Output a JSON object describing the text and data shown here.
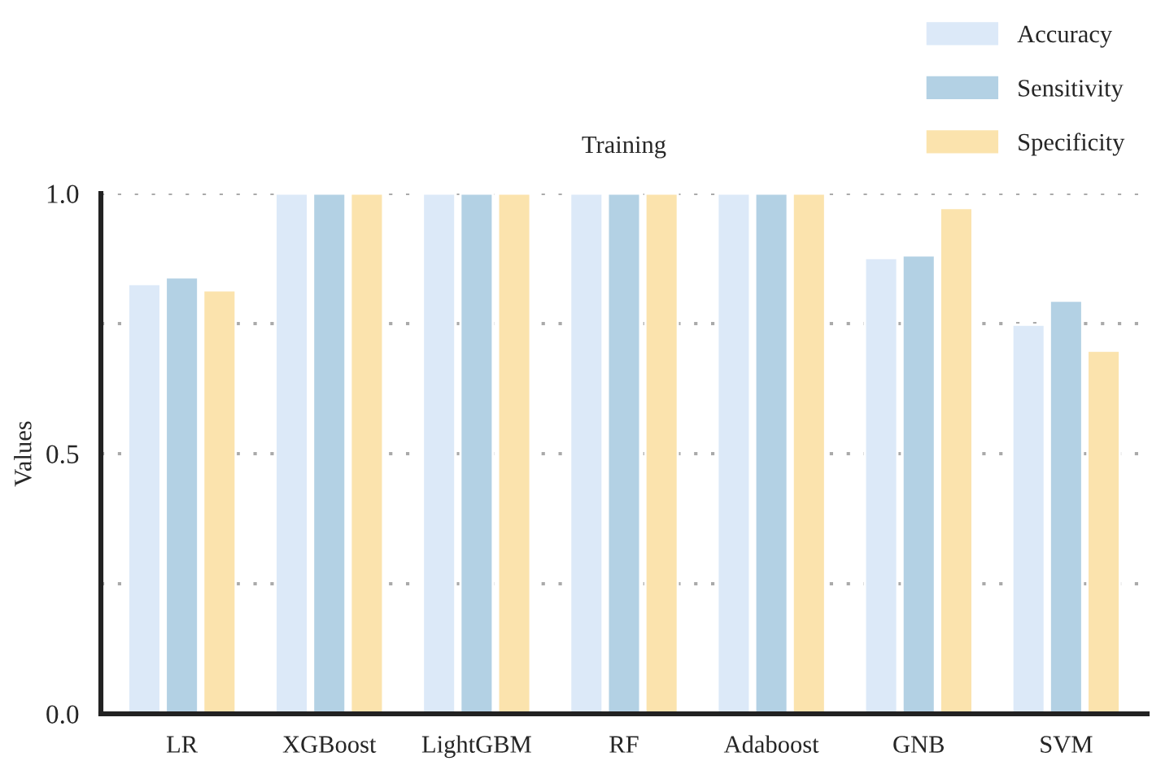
{
  "chart_data": {
    "type": "bar",
    "title": "Training",
    "ylabel": "Values",
    "categories": [
      "LR",
      "XGBoost",
      "LightGBM",
      "RF",
      "Adaboost",
      "GNB",
      "SVM"
    ],
    "series": [
      {
        "name": "Accuracy",
        "color": "#dce9f8",
        "values": [
          0.826,
          1.0,
          1.0,
          1.0,
          1.0,
          0.876,
          0.748
        ]
      },
      {
        "name": "Sensitivity",
        "color": "#b3d1e4",
        "values": [
          0.839,
          1.0,
          1.0,
          1.0,
          1.0,
          0.881,
          0.794
        ]
      },
      {
        "name": "Specificity",
        "color": "#fbe3ad",
        "values": [
          0.814,
          1.0,
          1.0,
          1.0,
          1.0,
          0.972,
          0.698
        ]
      }
    ],
    "ylim": [
      0,
      1.0
    ],
    "yticks": [
      {
        "value": 0,
        "label": "0.0"
      },
      {
        "value": 0.25,
        "label": null
      },
      {
        "value": 0.5,
        "label": "0.5"
      },
      {
        "value": 0.75,
        "label": null
      },
      {
        "value": 1.0,
        "label": "1.0"
      }
    ],
    "grid": "y",
    "legend": "top right"
  }
}
